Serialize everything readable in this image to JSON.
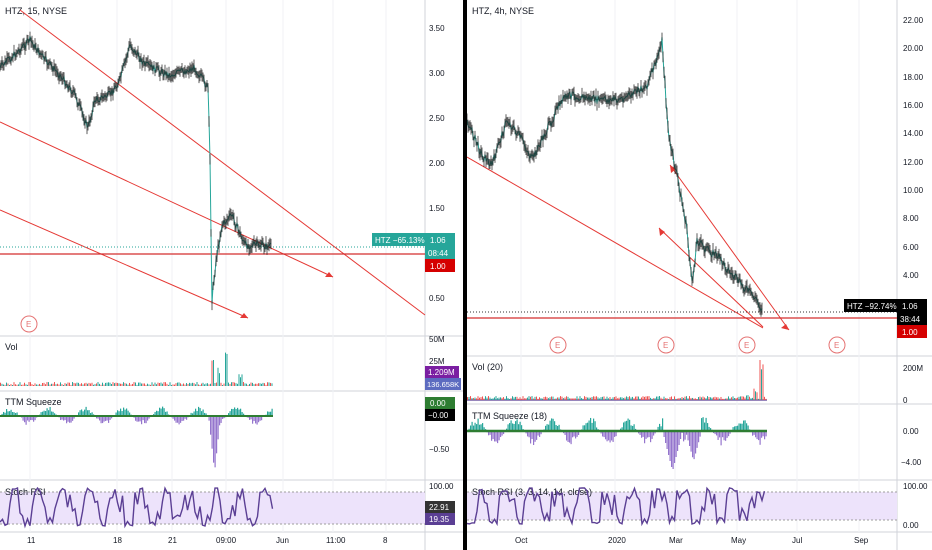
{
  "left": {
    "title": "HTZ, 15, NYSE",
    "price_axis": [
      "3.50",
      "3.00",
      "2.50",
      "2.00",
      "1.50",
      "1.00",
      "0.50"
    ],
    "time_axis": [
      "11",
      "18",
      "21",
      "09:00",
      "Jun",
      "11:00",
      "8"
    ],
    "tag_symbol": "HTZ −65.13%",
    "tag_price": "1.06",
    "tag_countdown": "08:44",
    "tag_level": "1.00",
    "vol_title": "Vol",
    "vol_axis": [
      "50M",
      "25M"
    ],
    "vol_tag1": "1.209M",
    "vol_tag2": "136.658K",
    "ttm_title": "TTM Squeeze",
    "ttm_axis": [
      "−0.50"
    ],
    "ttm_tag1": "0.00",
    "ttm_tag2": "−0.00",
    "rsi_title": "Stoch RSI",
    "rsi_axis": [
      "100.00"
    ],
    "rsi_tag1": "22.91",
    "rsi_tag2": "19.35",
    "event_marker": "E"
  },
  "right": {
    "title": "HTZ, 4h, NYSE",
    "price_axis": [
      "22.00",
      "20.00",
      "18.00",
      "16.00",
      "14.00",
      "12.00",
      "10.00",
      "8.00",
      "6.00",
      "4.00"
    ],
    "time_axis": [
      "Oct",
      "2020",
      "Mar",
      "May",
      "Jul",
      "Sep"
    ],
    "tag_symbol": "HTZ −92.74%",
    "tag_price": "1.06",
    "tag_countdown": "38:44",
    "tag_level": "1.00",
    "vol_title": "Vol (20)",
    "vol_axis": [
      "200M",
      "0"
    ],
    "ttm_title": "TTM Squeeze (18)",
    "ttm_axis": [
      "0.00",
      "−4.00"
    ],
    "rsi_title": "Stoch RSI (3, 3, 14, 14, close)",
    "rsi_axis": [
      "100.00",
      "0.00"
    ],
    "event_marker": "E"
  },
  "colors": {
    "up": "#26a69a",
    "down": "#ef5350",
    "trend": "#e53935",
    "level": "#d32f2f",
    "rsi": "#5b3f94",
    "rsi_band": "#ede3fb",
    "squeeze_pos": "#26a69a",
    "squeeze_neg": "#9575cd"
  }
}
